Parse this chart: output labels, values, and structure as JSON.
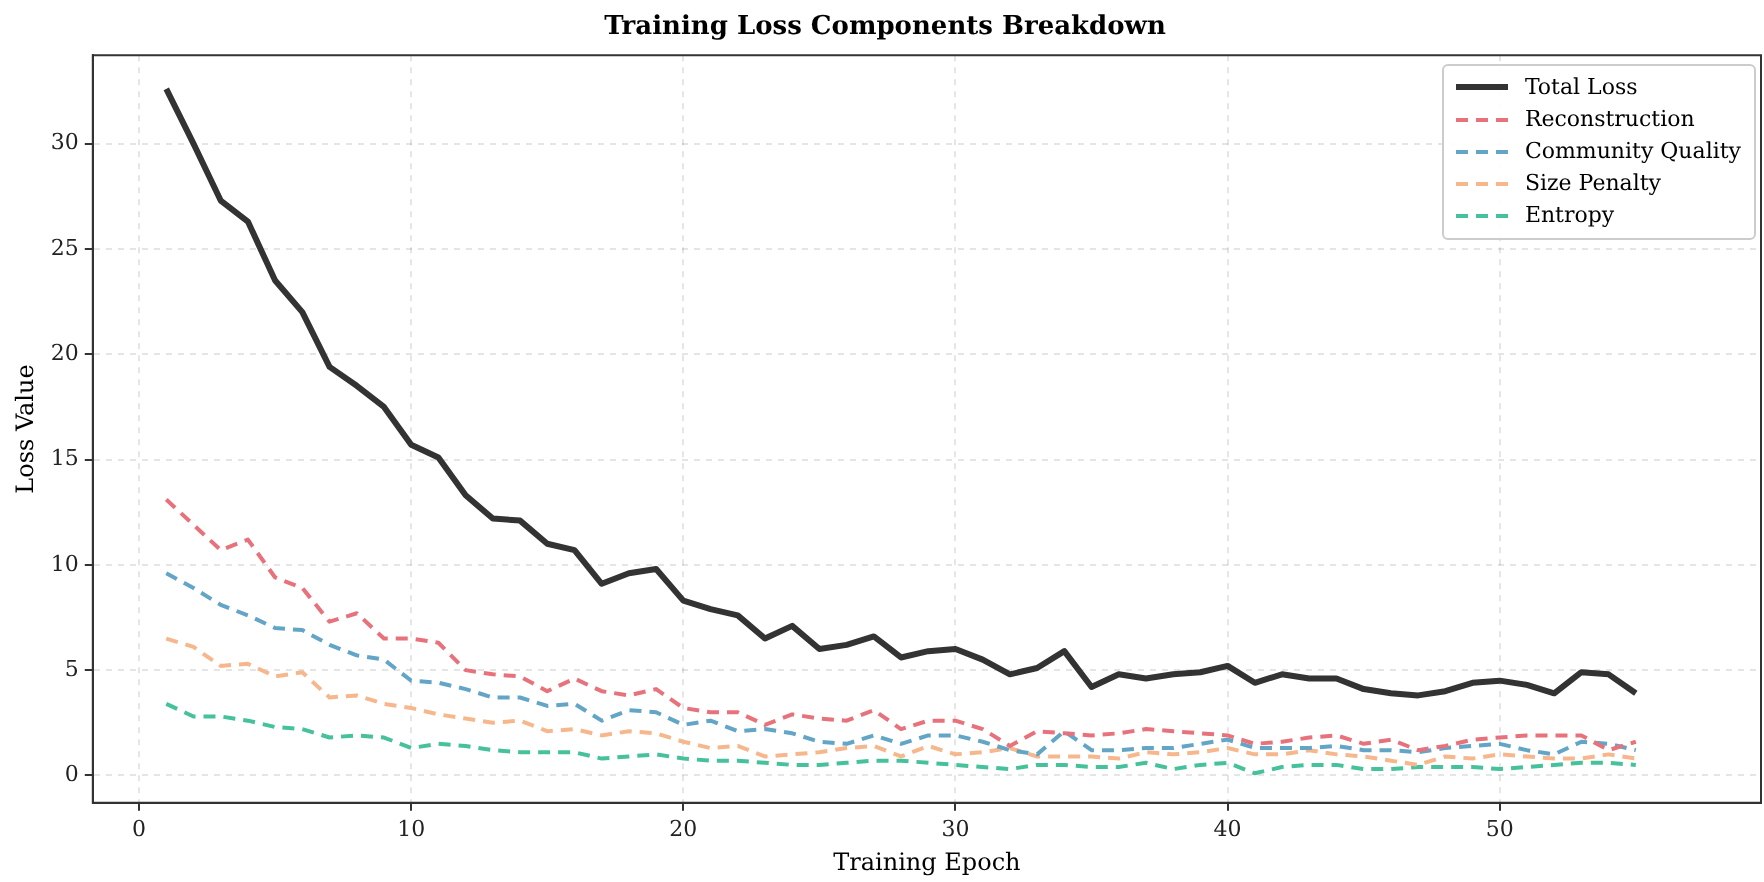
{
  "chart_data": {
    "type": "line",
    "title": "Training Loss Components Breakdown",
    "xlabel": "Training Epoch",
    "ylabel": "Loss Value",
    "x": [
      1,
      2,
      3,
      4,
      5,
      6,
      7,
      8,
      9,
      10,
      11,
      12,
      13,
      14,
      15,
      16,
      17,
      18,
      19,
      20,
      21,
      22,
      23,
      24,
      25,
      26,
      27,
      28,
      29,
      30,
      31,
      32,
      33,
      34,
      35,
      36,
      37,
      38,
      39,
      40,
      41,
      42,
      43,
      44,
      45,
      46,
      47,
      48,
      49,
      50,
      51,
      52,
      53,
      54,
      55
    ],
    "series": [
      {
        "name": "Total Loss",
        "color": "#333333",
        "line_style": "solid",
        "values": [
          32.6,
          30.0,
          27.3,
          26.3,
          23.5,
          22.0,
          19.4,
          18.5,
          17.5,
          15.7,
          15.1,
          13.3,
          12.2,
          12.1,
          11.0,
          10.7,
          9.1,
          9.6,
          9.8,
          8.3,
          7.9,
          7.6,
          6.5,
          7.1,
          6.0,
          6.2,
          6.6,
          5.6,
          5.9,
          6.0,
          5.5,
          4.8,
          5.1,
          5.9,
          4.2,
          4.8,
          4.6,
          4.8,
          4.9,
          5.2,
          4.4,
          4.8,
          4.6,
          4.6,
          4.1,
          3.9,
          3.8,
          4.0,
          4.4,
          4.5,
          4.3,
          3.9,
          4.9,
          4.8,
          3.9
        ]
      },
      {
        "name": "Reconstruction",
        "color": "#e8727c",
        "line_style": "dashed",
        "values": [
          13.1,
          11.9,
          10.7,
          11.2,
          9.4,
          8.9,
          7.3,
          7.7,
          6.5,
          6.5,
          6.3,
          5.0,
          4.8,
          4.7,
          4.0,
          4.6,
          4.0,
          3.8,
          4.1,
          3.2,
          3.0,
          3.0,
          2.4,
          2.9,
          2.7,
          2.6,
          3.1,
          2.2,
          2.6,
          2.6,
          2.2,
          1.4,
          2.1,
          2.0,
          1.9,
          2.0,
          2.2,
          2.1,
          2.0,
          1.9,
          1.5,
          1.6,
          1.8,
          1.9,
          1.5,
          1.7,
          1.2,
          1.4,
          1.7,
          1.8,
          1.9,
          1.9,
          1.9,
          1.2,
          1.6
        ]
      },
      {
        "name": "Community Quality",
        "color": "#62a5c6",
        "line_style": "dashed",
        "values": [
          9.6,
          8.9,
          8.1,
          7.6,
          7.0,
          6.9,
          6.2,
          5.7,
          5.5,
          4.5,
          4.4,
          4.1,
          3.7,
          3.7,
          3.3,
          3.4,
          2.6,
          3.1,
          3.0,
          2.4,
          2.6,
          2.1,
          2.2,
          2.0,
          1.6,
          1.5,
          1.9,
          1.5,
          1.9,
          1.9,
          1.6,
          1.2,
          1.0,
          2.1,
          1.2,
          1.2,
          1.3,
          1.3,
          1.5,
          1.7,
          1.3,
          1.3,
          1.3,
          1.4,
          1.2,
          1.2,
          1.1,
          1.3,
          1.4,
          1.5,
          1.2,
          1.0,
          1.6,
          1.5,
          1.2
        ]
      },
      {
        "name": "Size Penalty",
        "color": "#f7b78c",
        "line_style": "dashed",
        "values": [
          6.5,
          6.1,
          5.2,
          5.3,
          4.7,
          4.9,
          3.7,
          3.8,
          3.4,
          3.2,
          2.9,
          2.7,
          2.5,
          2.6,
          2.1,
          2.2,
          1.9,
          2.1,
          2.0,
          1.6,
          1.3,
          1.4,
          0.9,
          1.0,
          1.1,
          1.3,
          1.4,
          0.9,
          1.4,
          1.0,
          1.1,
          1.3,
          0.9,
          0.9,
          0.9,
          0.8,
          1.1,
          1.0,
          1.1,
          1.3,
          1.0,
          1.0,
          1.2,
          1.0,
          0.9,
          0.7,
          0.5,
          0.9,
          0.8,
          1.0,
          0.9,
          0.8,
          0.8,
          1.0,
          0.8
        ]
      },
      {
        "name": "Entropy",
        "color": "#45c19c",
        "line_style": "dashed",
        "values": [
          3.4,
          2.8,
          2.8,
          2.6,
          2.3,
          2.2,
          1.8,
          1.9,
          1.8,
          1.3,
          1.5,
          1.4,
          1.2,
          1.1,
          1.1,
          1.1,
          0.8,
          0.9,
          1.0,
          0.8,
          0.7,
          0.7,
          0.6,
          0.5,
          0.5,
          0.6,
          0.7,
          0.7,
          0.6,
          0.5,
          0.4,
          0.3,
          0.5,
          0.5,
          0.4,
          0.4,
          0.6,
          0.3,
          0.5,
          0.6,
          0.1,
          0.4,
          0.5,
          0.5,
          0.3,
          0.3,
          0.4,
          0.4,
          0.4,
          0.3,
          0.4,
          0.5,
          0.6,
          0.6,
          0.5
        ]
      }
    ],
    "xlim": [
      -1.7,
      59.6
    ],
    "ylim": [
      -1.3,
      34.2
    ],
    "xticks": [
      0,
      10,
      20,
      30,
      40,
      50
    ],
    "yticks": [
      0,
      5,
      10,
      15,
      20,
      25,
      30
    ],
    "grid": true,
    "legend": "top right",
    "marker": "none"
  }
}
